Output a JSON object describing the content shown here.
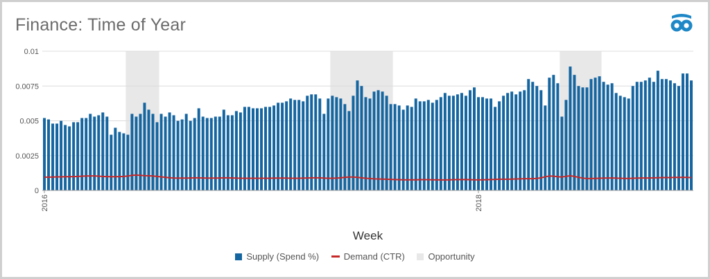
{
  "title": "Finance: Time of Year",
  "icons": {
    "brand_logo": "binoculars-logo-icon"
  },
  "colors": {
    "supply": "#1565a0",
    "demand": "#c62828",
    "opportunity": "#e8e8e8",
    "grid": "#dcdcdc",
    "axis": "#999999"
  },
  "chart_data": {
    "type": "bar",
    "xlabel": "Week",
    "ylabel": "",
    "ylim": [
      0,
      0.01
    ],
    "yticks": [
      "0",
      "0.0025",
      "0.005",
      "0.0075",
      "0.01"
    ],
    "ytick_values": [
      0,
      0.0025,
      0.005,
      0.0075,
      0.01
    ],
    "x_tick_labels": [
      {
        "label": "2016",
        "week": 1
      },
      {
        "label": "2018",
        "week": 105
      }
    ],
    "grid": true,
    "legend": "bottom",
    "series": [
      {
        "name": "Supply (Spend %)",
        "type": "bar",
        "values": [
          0.0052,
          0.0051,
          0.0048,
          0.0048,
          0.005,
          0.0047,
          0.0046,
          0.0049,
          0.0049,
          0.0052,
          0.0052,
          0.0055,
          0.0053,
          0.0054,
          0.0056,
          0.0053,
          0.004,
          0.0045,
          0.0042,
          0.0041,
          0.004,
          0.0055,
          0.0053,
          0.0055,
          0.0063,
          0.0058,
          0.0055,
          0.0049,
          0.0055,
          0.0053,
          0.0056,
          0.0054,
          0.005,
          0.0051,
          0.0055,
          0.005,
          0.0052,
          0.0059,
          0.0053,
          0.0052,
          0.0052,
          0.0053,
          0.0053,
          0.0058,
          0.0054,
          0.0054,
          0.0057,
          0.0056,
          0.006,
          0.006,
          0.0059,
          0.0059,
          0.0059,
          0.006,
          0.006,
          0.0061,
          0.0063,
          0.0063,
          0.0064,
          0.0066,
          0.0065,
          0.0065,
          0.0064,
          0.0068,
          0.0069,
          0.0069,
          0.0066,
          0.0055,
          0.0066,
          0.0068,
          0.0067,
          0.0066,
          0.0062,
          0.0057,
          0.0068,
          0.0079,
          0.0075,
          0.0067,
          0.0066,
          0.0071,
          0.0072,
          0.0071,
          0.0068,
          0.0062,
          0.0062,
          0.0061,
          0.0058,
          0.0061,
          0.006,
          0.0066,
          0.0064,
          0.0064,
          0.0065,
          0.0063,
          0.0065,
          0.0067,
          0.007,
          0.0068,
          0.0068,
          0.0069,
          0.007,
          0.0068,
          0.0072,
          0.0074,
          0.0067,
          0.0067,
          0.0066,
          0.0066,
          0.006,
          0.0064,
          0.0068,
          0.007,
          0.0071,
          0.0069,
          0.0071,
          0.0072,
          0.008,
          0.0078,
          0.0075,
          0.0072,
          0.0061,
          0.0081,
          0.0083,
          0.0077,
          0.0053,
          0.0065,
          0.0089,
          0.0083,
          0.0075,
          0.0074,
          0.0074,
          0.008,
          0.0081,
          0.0082,
          0.0078,
          0.0076,
          0.0077,
          0.007,
          0.0068,
          0.0067,
          0.0066,
          0.0075,
          0.0078,
          0.0078,
          0.0079,
          0.0081,
          0.0078,
          0.0086,
          0.008,
          0.008,
          0.0079,
          0.0077,
          0.0075,
          0.0084,
          0.0084,
          0.0079
        ]
      },
      {
        "name": "Demand (CTR)",
        "type": "line",
        "values": [
          0.00095,
          0.00095,
          0.00096,
          0.00097,
          0.00097,
          0.00098,
          0.00098,
          0.00099,
          0.001,
          0.00102,
          0.00103,
          0.00104,
          0.00104,
          0.00102,
          0.001,
          0.00099,
          0.00098,
          0.00098,
          0.00099,
          0.001,
          0.00103,
          0.00108,
          0.0011,
          0.00108,
          0.00106,
          0.00105,
          0.00103,
          0.001,
          0.00097,
          0.00094,
          0.00091,
          0.00089,
          0.00088,
          0.00088,
          0.00088,
          0.00089,
          0.0009,
          0.0009,
          0.00089,
          0.00088,
          0.00088,
          0.00088,
          0.00089,
          0.0009,
          0.0009,
          0.00089,
          0.00088,
          0.00087,
          0.00087,
          0.00087,
          0.00087,
          0.00087,
          0.00087,
          0.00087,
          0.00087,
          0.00088,
          0.00088,
          0.00088,
          0.00088,
          0.00087,
          0.00087,
          0.00087,
          0.00088,
          0.00089,
          0.0009,
          0.0009,
          0.0009,
          0.00088,
          0.00087,
          0.00087,
          0.00088,
          0.0009,
          0.00094,
          0.00096,
          0.00096,
          0.00094,
          0.0009,
          0.00087,
          0.00085,
          0.00083,
          0.00082,
          0.00081,
          0.0008,
          0.00079,
          0.00078,
          0.00077,
          0.00076,
          0.00076,
          0.00076,
          0.00076,
          0.00077,
          0.00077,
          0.00077,
          0.00076,
          0.00076,
          0.00075,
          0.00075,
          0.00076,
          0.00077,
          0.00078,
          0.00078,
          0.00078,
          0.00077,
          0.00076,
          0.00076,
          0.00076,
          0.00077,
          0.00078,
          0.00079,
          0.0008,
          0.0008,
          0.0008,
          0.00081,
          0.00082,
          0.00083,
          0.00084,
          0.00084,
          0.00084,
          0.00086,
          0.0009,
          0.00098,
          0.00103,
          0.00102,
          0.00098,
          0.00096,
          0.00101,
          0.00105,
          0.001,
          0.00094,
          0.00088,
          0.00085,
          0.00085,
          0.00086,
          0.00087,
          0.00088,
          0.00089,
          0.00089,
          0.00088,
          0.00087,
          0.00086,
          0.00086,
          0.00087,
          0.00088,
          0.00089,
          0.00089,
          0.00089,
          0.0009,
          0.00091,
          0.00092,
          0.00092,
          0.00092,
          0.00093,
          0.00093,
          0.00094,
          0.00093,
          0.00092
        ]
      },
      {
        "name": "Opportunity",
        "type": "shaded-band",
        "ranges": [
          [
            21,
            28
          ],
          [
            70,
            84
          ],
          [
            125,
            134
          ]
        ]
      }
    ]
  }
}
